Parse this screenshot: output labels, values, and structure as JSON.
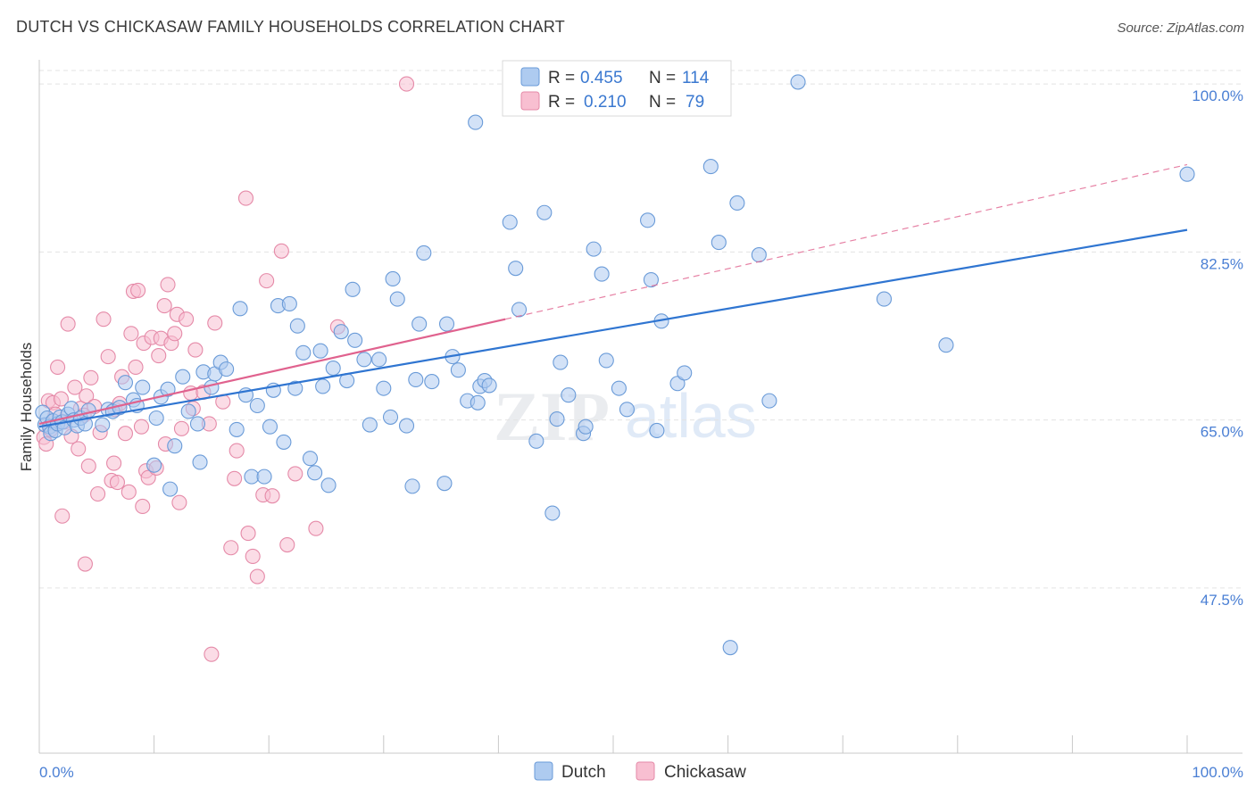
{
  "header": {
    "title": "DUTCH VS CHICKASAW FAMILY HOUSEHOLDS CORRELATION CHART",
    "source": "Source: ZipAtlas.com"
  },
  "colors": {
    "dutch_fill": "#aecbf0",
    "dutch_stroke": "#6a9bd8",
    "dutch_line": "#2f75d1",
    "chickasaw_fill": "#f8bfd1",
    "chickasaw_stroke": "#e58aa8",
    "chickasaw_line": "#e0628e",
    "tick_text": "#4a7fd4"
  },
  "legend": {
    "rows": [
      {
        "r_label": "R = ",
        "r_value": "0.455",
        "n_label": "N = ",
        "n_value": "114"
      },
      {
        "r_label": "R = ",
        "r_value": "0.210",
        "n_label": "N = ",
        "n_value": "79"
      }
    ]
  },
  "watermark": {
    "zip": "ZIP",
    "atlas": "atlas"
  },
  "chart_data": {
    "type": "scatter",
    "title": "DUTCH VS CHICKASAW FAMILY HOUSEHOLDS CORRELATION CHART",
    "xlabel": "",
    "ylabel": "Family Households",
    "xlim": [
      0,
      100
    ],
    "ylim": [
      30.3,
      101.4
    ],
    "x_tick_labels": [
      "0.0%",
      "100.0%"
    ],
    "y_ticks": [
      47.5,
      65.0,
      82.5,
      100.0
    ],
    "y_tick_labels": [
      "47.5%",
      "65.0%",
      "82.5%",
      "100.0%"
    ],
    "grid": true,
    "series": [
      {
        "name": "Dutch",
        "R": 0.455,
        "N": 114,
        "trend": {
          "x0": 0,
          "y0": 64.3,
          "x1": 100,
          "y1": 84.8,
          "style": "solid"
        },
        "points": [
          [
            0.3,
            65.8
          ],
          [
            0.5,
            64.5
          ],
          [
            0.7,
            65.2
          ],
          [
            0.9,
            64.3
          ],
          [
            1.0,
            63.6
          ],
          [
            1.2,
            64.9
          ],
          [
            1.4,
            63.9
          ],
          [
            1.6,
            64.6
          ],
          [
            1.8,
            65.3
          ],
          [
            2.0,
            64.8
          ],
          [
            2.2,
            64.2
          ],
          [
            2.5,
            65.6
          ],
          [
            2.8,
            66.2
          ],
          [
            3.0,
            65.0
          ],
          [
            3.3,
            64.4
          ],
          [
            3.6,
            65.2
          ],
          [
            4.0,
            64.6
          ],
          [
            4.3,
            66.0
          ],
          [
            5.5,
            64.5
          ],
          [
            6.0,
            66.1
          ],
          [
            6.4,
            65.9
          ],
          [
            7.0,
            66.3
          ],
          [
            7.5,
            68.9
          ],
          [
            8.2,
            67.1
          ],
          [
            8.5,
            66.5
          ],
          [
            9.0,
            68.4
          ],
          [
            10.2,
            65.2
          ],
          [
            10.6,
            67.4
          ],
          [
            11.2,
            68.2
          ],
          [
            10.0,
            60.3
          ],
          [
            11.4,
            57.8
          ],
          [
            12.5,
            69.5
          ],
          [
            11.8,
            62.3
          ],
          [
            13.0,
            65.9
          ],
          [
            13.8,
            64.6
          ],
          [
            14.0,
            60.6
          ],
          [
            14.3,
            70.0
          ],
          [
            15.0,
            68.4
          ],
          [
            15.3,
            69.8
          ],
          [
            15.8,
            71.0
          ],
          [
            16.3,
            70.3
          ],
          [
            17.2,
            64.0
          ],
          [
            17.5,
            76.6
          ],
          [
            18.0,
            67.6
          ],
          [
            18.5,
            59.1
          ],
          [
            19.0,
            66.5
          ],
          [
            19.6,
            59.1
          ],
          [
            20.1,
            64.3
          ],
          [
            20.4,
            68.1
          ],
          [
            20.8,
            76.9
          ],
          [
            21.3,
            62.7
          ],
          [
            21.8,
            77.1
          ],
          [
            22.3,
            68.3
          ],
          [
            22.5,
            74.8
          ],
          [
            23.0,
            72.0
          ],
          [
            23.6,
            61.0
          ],
          [
            24.0,
            59.5
          ],
          [
            24.5,
            72.2
          ],
          [
            24.7,
            68.5
          ],
          [
            25.2,
            58.2
          ],
          [
            25.6,
            70.4
          ],
          [
            26.3,
            74.2
          ],
          [
            26.8,
            69.1
          ],
          [
            27.3,
            78.6
          ],
          [
            27.5,
            73.3
          ],
          [
            28.3,
            71.3
          ],
          [
            28.8,
            64.5
          ],
          [
            29.6,
            71.3
          ],
          [
            30.0,
            68.3
          ],
          [
            30.6,
            65.3
          ],
          [
            30.8,
            79.7
          ],
          [
            31.2,
            77.6
          ],
          [
            32.0,
            64.4
          ],
          [
            32.5,
            58.1
          ],
          [
            32.8,
            69.2
          ],
          [
            33.1,
            75.0
          ],
          [
            33.5,
            82.4
          ],
          [
            34.2,
            69.0
          ],
          [
            35.3,
            58.4
          ],
          [
            35.5,
            75.0
          ],
          [
            36.0,
            71.6
          ],
          [
            36.5,
            70.2
          ],
          [
            37.3,
            67.0
          ],
          [
            38.0,
            96.0
          ],
          [
            38.2,
            66.8
          ],
          [
            38.4,
            68.5
          ],
          [
            38.8,
            69.1
          ],
          [
            39.2,
            68.6
          ],
          [
            41.0,
            85.6
          ],
          [
            41.5,
            80.8
          ],
          [
            41.8,
            76.5
          ],
          [
            43.3,
            62.8
          ],
          [
            44.0,
            86.6
          ],
          [
            44.7,
            55.3
          ],
          [
            45.1,
            65.1
          ],
          [
            45.4,
            71.0
          ],
          [
            46.1,
            67.6
          ],
          [
            47.4,
            63.6
          ],
          [
            47.6,
            64.3
          ],
          [
            48.3,
            82.8
          ],
          [
            49.0,
            80.2
          ],
          [
            49.4,
            71.2
          ],
          [
            50.5,
            68.3
          ],
          [
            51.2,
            66.1
          ],
          [
            53.0,
            85.8
          ],
          [
            53.3,
            79.6
          ],
          [
            53.8,
            63.9
          ],
          [
            54.2,
            75.3
          ],
          [
            55.6,
            68.8
          ],
          [
            56.2,
            69.9
          ],
          [
            58.5,
            91.4
          ],
          [
            59.2,
            83.5
          ],
          [
            60.2,
            41.3
          ],
          [
            60.8,
            87.6
          ],
          [
            62.7,
            82.2
          ],
          [
            63.6,
            67.0
          ],
          [
            66.1,
            100.2
          ],
          [
            73.6,
            77.6
          ],
          [
            79.0,
            72.8
          ],
          [
            100.0,
            90.6
          ]
        ]
      },
      {
        "name": "Chickasaw",
        "R": 0.21,
        "N": 79,
        "trend": {
          "x0": 0,
          "y0": 64.6,
          "x1": 40.6,
          "y1": 75.5,
          "style": "solid",
          "extension": {
            "x1": 100,
            "y1": 91.6,
            "style": "dashed"
          }
        },
        "points": [
          [
            0.4,
            63.2
          ],
          [
            0.6,
            62.5
          ],
          [
            0.8,
            67.0
          ],
          [
            1.0,
            64.0
          ],
          [
            1.2,
            66.8
          ],
          [
            1.4,
            65.6
          ],
          [
            1.6,
            70.5
          ],
          [
            1.9,
            67.2
          ],
          [
            2.2,
            64.8
          ],
          [
            2.5,
            75.0
          ],
          [
            2.8,
            63.3
          ],
          [
            3.1,
            68.4
          ],
          [
            3.4,
            62.0
          ],
          [
            3.6,
            66.2
          ],
          [
            3.9,
            65.5
          ],
          [
            4.1,
            67.5
          ],
          [
            4.3,
            60.2
          ],
          [
            4.5,
            69.4
          ],
          [
            4.8,
            66.4
          ],
          [
            5.1,
            57.3
          ],
          [
            5.3,
            63.7
          ],
          [
            5.6,
            75.5
          ],
          [
            6.0,
            71.6
          ],
          [
            6.3,
            58.7
          ],
          [
            6.6,
            66.1
          ],
          [
            6.8,
            58.5
          ],
          [
            7.0,
            66.7
          ],
          [
            7.2,
            69.5
          ],
          [
            7.5,
            63.6
          ],
          [
            7.8,
            57.5
          ],
          [
            8.0,
            74.0
          ],
          [
            8.2,
            78.4
          ],
          [
            8.4,
            70.5
          ],
          [
            8.6,
            78.5
          ],
          [
            8.9,
            64.3
          ],
          [
            9.1,
            73.0
          ],
          [
            9.3,
            59.7
          ],
          [
            9.5,
            59.0
          ],
          [
            9.8,
            73.6
          ],
          [
            10.2,
            60.0
          ],
          [
            10.4,
            71.7
          ],
          [
            10.6,
            73.5
          ],
          [
            10.9,
            76.9
          ],
          [
            11.2,
            79.1
          ],
          [
            11.5,
            73.0
          ],
          [
            11.8,
            74.0
          ],
          [
            12.0,
            76.0
          ],
          [
            12.2,
            56.4
          ],
          [
            12.4,
            64.1
          ],
          [
            12.8,
            75.5
          ],
          [
            13.2,
            67.8
          ],
          [
            13.4,
            66.2
          ],
          [
            13.6,
            72.3
          ],
          [
            14.3,
            67.9
          ],
          [
            15.0,
            40.6
          ],
          [
            15.3,
            75.1
          ],
          [
            16.0,
            66.9
          ],
          [
            16.7,
            51.7
          ],
          [
            17.0,
            58.9
          ],
          [
            18.0,
            88.1
          ],
          [
            18.2,
            53.2
          ],
          [
            18.6,
            50.8
          ],
          [
            19.0,
            48.7
          ],
          [
            19.5,
            57.2
          ],
          [
            19.8,
            79.5
          ],
          [
            20.3,
            57.1
          ],
          [
            21.1,
            82.6
          ],
          [
            21.6,
            52.0
          ],
          [
            24.1,
            53.7
          ],
          [
            26.0,
            74.7
          ],
          [
            32.0,
            100.0
          ],
          [
            2.0,
            55.0
          ],
          [
            4.0,
            50.0
          ],
          [
            6.5,
            60.5
          ],
          [
            9.0,
            56.0
          ],
          [
            11.0,
            62.5
          ],
          [
            14.8,
            64.6
          ],
          [
            17.2,
            61.8
          ],
          [
            22.3,
            59.4
          ]
        ]
      }
    ]
  },
  "bottom_legend": {
    "items": [
      "Dutch",
      "Chickasaw"
    ]
  }
}
